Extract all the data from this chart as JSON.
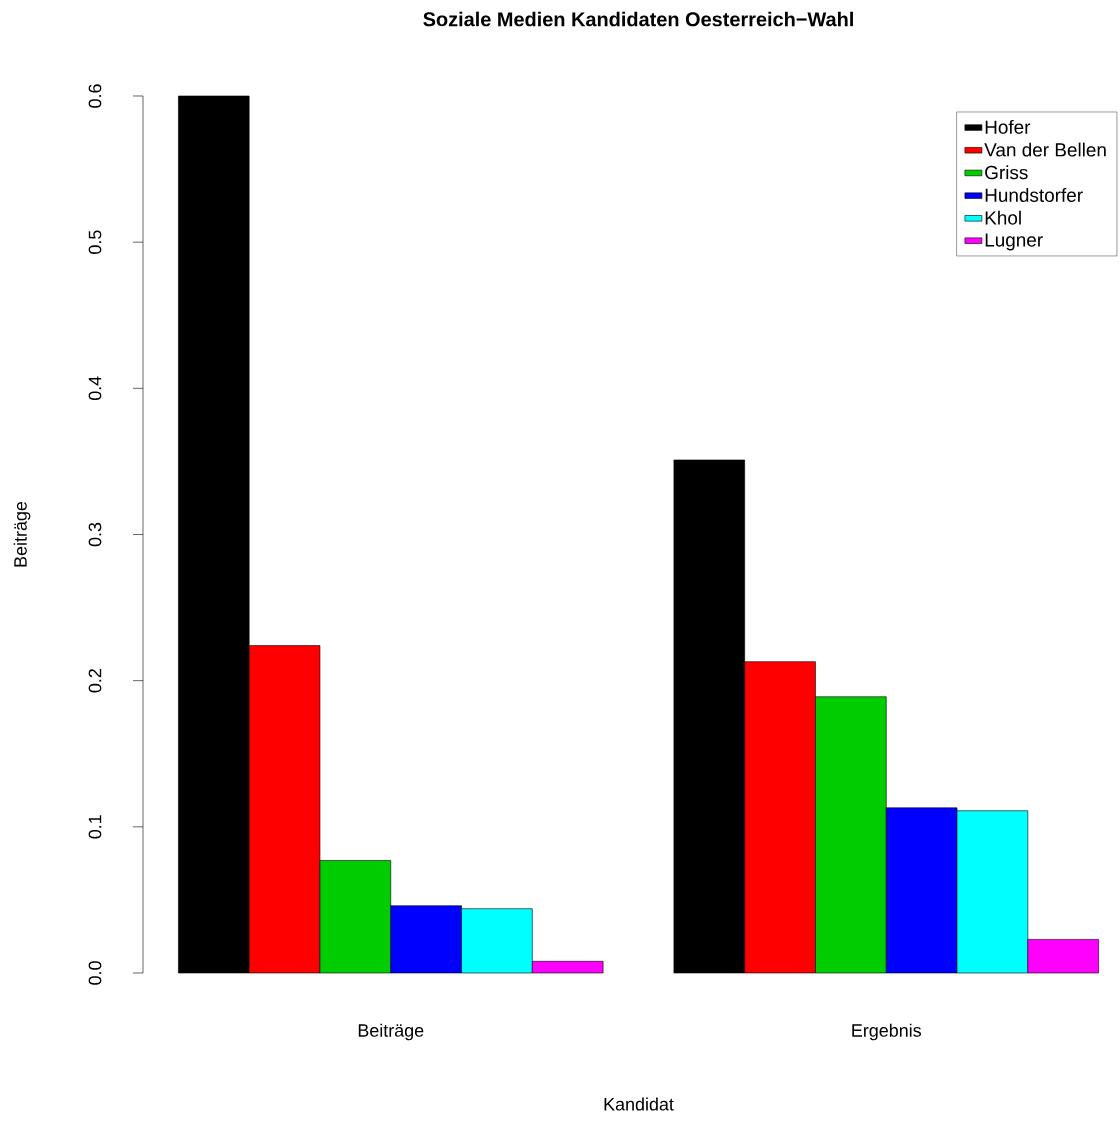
{
  "chart_data": {
    "type": "bar",
    "title": "Soziale Medien Kandidaten Oesterreich−Wahl",
    "xlabel": "Kandidat",
    "ylabel": "Beiträge",
    "categories": [
      "Beiträge",
      "Ergebnis"
    ],
    "series": [
      {
        "name": "Hofer",
        "color": "#000000",
        "values": [
          0.6,
          0.351
        ]
      },
      {
        "name": "Van der Bellen",
        "color": "#ff0000",
        "values": [
          0.224,
          0.213
        ]
      },
      {
        "name": "Griss",
        "color": "#00cd00",
        "values": [
          0.077,
          0.189
        ]
      },
      {
        "name": "Hundstorfer",
        "color": "#0000ff",
        "values": [
          0.046,
          0.113
        ]
      },
      {
        "name": "Khol",
        "color": "#00ffff",
        "values": [
          0.044,
          0.111
        ]
      },
      {
        "name": "Lugner",
        "color": "#ff00ff",
        "values": [
          0.008,
          0.023
        ]
      }
    ],
    "ylim": [
      0,
      0.6
    ],
    "yticks": [
      {
        "value": 0,
        "label": "0.0"
      },
      0.1,
      0.2,
      0.3,
      0.4,
      0.5,
      0.6
    ],
    "legend": "top right",
    "grid": false
  }
}
